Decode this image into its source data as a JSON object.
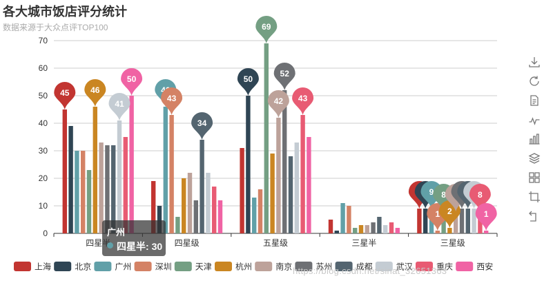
{
  "chart_data": {
    "type": "bar",
    "title": "各大城市饭店评分统计",
    "subtitle": "数据来源于大众点评TOP100",
    "categories": [
      "四星半",
      "四星级",
      "五星级",
      "三星半",
      "三星级"
    ],
    "ylim": [
      0,
      70
    ],
    "yticks": [
      0,
      10,
      20,
      30,
      40,
      50,
      60,
      70
    ],
    "grid": true,
    "legend_position": "bottom",
    "series": [
      {
        "name": "上海",
        "color": "#c23531",
        "values": [
          45,
          19,
          31,
          5,
          9
        ]
      },
      {
        "name": "北京",
        "color": "#2f4554",
        "values": [
          39,
          10,
          50,
          1,
          9
        ]
      },
      {
        "name": "广州",
        "color": "#61a0a8",
        "values": [
          30,
          46,
          13,
          11,
          9
        ]
      },
      {
        "name": "深圳",
        "color": "#d48265",
        "values": [
          30,
          43,
          16,
          10,
          1
        ]
      },
      {
        "name": "天津",
        "color": "#749f83",
        "values": [
          23,
          6,
          69,
          2,
          8
        ]
      },
      {
        "name": "杭州",
        "color": "#ca8622",
        "values": [
          46,
          20,
          29,
          3,
          2
        ]
      },
      {
        "name": "南京",
        "color": "#bda29a",
        "values": [
          33,
          22,
          42,
          3,
          8
        ]
      },
      {
        "name": "苏州",
        "color": "#6e7074",
        "values": [
          32,
          12,
          52,
          4,
          9
        ]
      },
      {
        "name": "成都",
        "color": "#546570",
        "values": [
          32,
          34,
          28,
          6,
          9
        ]
      },
      {
        "name": "武汉",
        "color": "#c4ccd3",
        "values": [
          41,
          22,
          33,
          3,
          9
        ]
      },
      {
        "name": "重庆",
        "color": "#e85b73",
        "values": [
          35,
          17,
          43,
          4,
          8
        ]
      },
      {
        "name": "西安",
        "color": "#f063a4",
        "values": [
          50,
          12,
          35,
          2,
          1
        ]
      }
    ],
    "mark_points": [
      {
        "series": "上海",
        "category": "四星半",
        "value": 45
      },
      {
        "series": "杭州",
        "category": "四星半",
        "value": 46
      },
      {
        "series": "武汉",
        "category": "四星半",
        "value": 41
      },
      {
        "series": "西安",
        "category": "四星半",
        "value": 50
      },
      {
        "series": "广州",
        "category": "四星级",
        "value": 46
      },
      {
        "series": "深圳",
        "category": "四星级",
        "value": 43
      },
      {
        "series": "成都",
        "category": "四星级",
        "value": 34
      },
      {
        "series": "北京",
        "category": "五星级",
        "value": 50
      },
      {
        "series": "天津",
        "category": "五星级",
        "value": 69
      },
      {
        "series": "南京",
        "category": "五星级",
        "value": 42
      },
      {
        "series": "苏州",
        "category": "五星级",
        "value": 52
      },
      {
        "series": "重庆",
        "category": "五星级",
        "value": 43
      },
      {
        "series": "上海",
        "category": "三星级",
        "value": 9
      },
      {
        "series": "北京",
        "category": "三星级",
        "value": 9
      },
      {
        "series": "广州",
        "category": "三星级",
        "value": 9
      },
      {
        "series": "深圳",
        "category": "三星级",
        "value": 1
      },
      {
        "series": "天津",
        "category": "三星级",
        "value": 8
      },
      {
        "series": "杭州",
        "category": "三星级",
        "value": 2
      },
      {
        "series": "南京",
        "category": "三星级",
        "value": 8
      },
      {
        "series": "苏州",
        "category": "三星级",
        "value": 9
      },
      {
        "series": "成都",
        "category": "三星级",
        "value": 9
      },
      {
        "series": "武汉",
        "category": "三星级",
        "value": 9
      },
      {
        "series": "重庆",
        "category": "三星级",
        "value": 8
      },
      {
        "series": "西安",
        "category": "三星级",
        "value": 1
      }
    ],
    "tooltip": {
      "title": "广州",
      "series_name": "四星半",
      "separator": ":",
      "value": 30,
      "color": "#61a0a8"
    }
  },
  "toolbox": [
    {
      "name": "save-image-icon"
    },
    {
      "name": "restore-icon"
    },
    {
      "name": "data-view-icon"
    },
    {
      "name": "line-chart-icon"
    },
    {
      "name": "bar-chart-icon"
    },
    {
      "name": "stack-icon"
    },
    {
      "name": "tiled-icon"
    },
    {
      "name": "data-zoom-icon"
    },
    {
      "name": "zoom-reset-icon"
    }
  ],
  "watermark": "https://blog.csdn.net/sinat_32651363"
}
